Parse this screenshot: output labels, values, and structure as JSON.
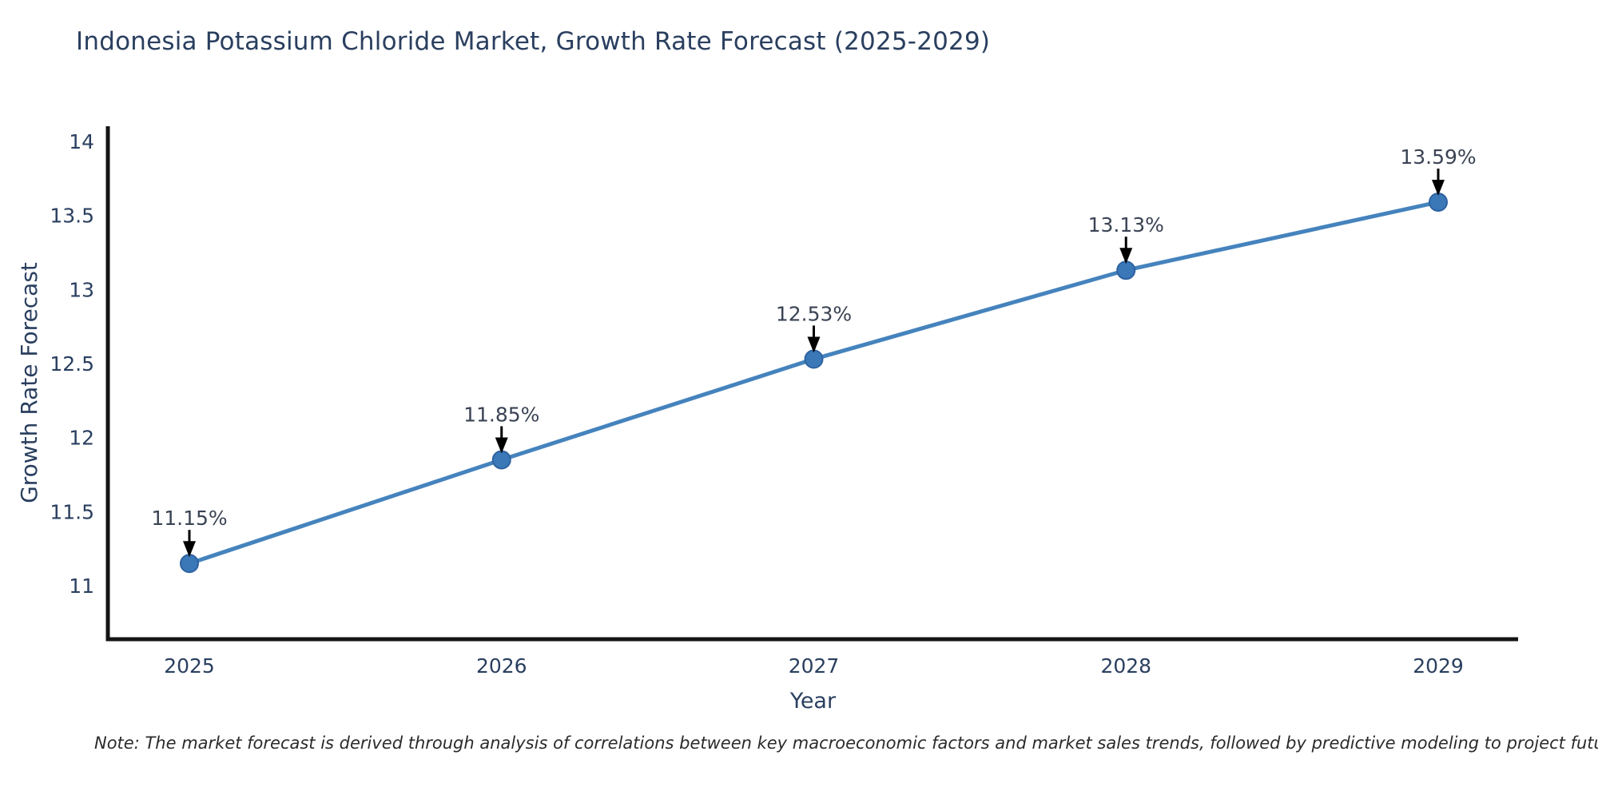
{
  "title": "Indonesia Potassium Chloride Market, Growth Rate Forecast (2025-2029)",
  "note": "Note: The market forecast is derived through analysis of correlations between key macroeconomic factors and market sales trends, followed by predictive modeling to project future sal",
  "chart_data": {
    "type": "line",
    "title": "Indonesia Potassium Chloride Market, Growth Rate Forecast (2025-2029)",
    "xlabel": "Year",
    "ylabel": "Growth Rate Forecast",
    "categories": [
      "2025",
      "2026",
      "2027",
      "2028",
      "2029"
    ],
    "values": [
      11.15,
      11.85,
      12.53,
      13.13,
      13.59
    ],
    "point_labels": [
      "11.15%",
      "11.85%",
      "12.53%",
      "13.13%",
      "13.59%"
    ],
    "yticks": [
      "11",
      "11.5",
      "12",
      "12.5",
      "13",
      "13.5",
      "14"
    ],
    "ytick_values": [
      11,
      11.5,
      12,
      12.5,
      13,
      13.5,
      14
    ],
    "ylim": [
      10.64,
      14.1
    ],
    "grid": false,
    "legend": "none",
    "annotation_style": "black-arrow-pointing-down-to-marker",
    "style": {
      "line_color": "#4583bd",
      "marker_color": "#3a78b8",
      "marker_edge_color": "#2f62a0",
      "axis_color": "#141414",
      "text_color": "#2a3f5f",
      "annotation_color": "#3a4354",
      "arrow_color": "#000000",
      "background_color": "#ffffff"
    }
  }
}
